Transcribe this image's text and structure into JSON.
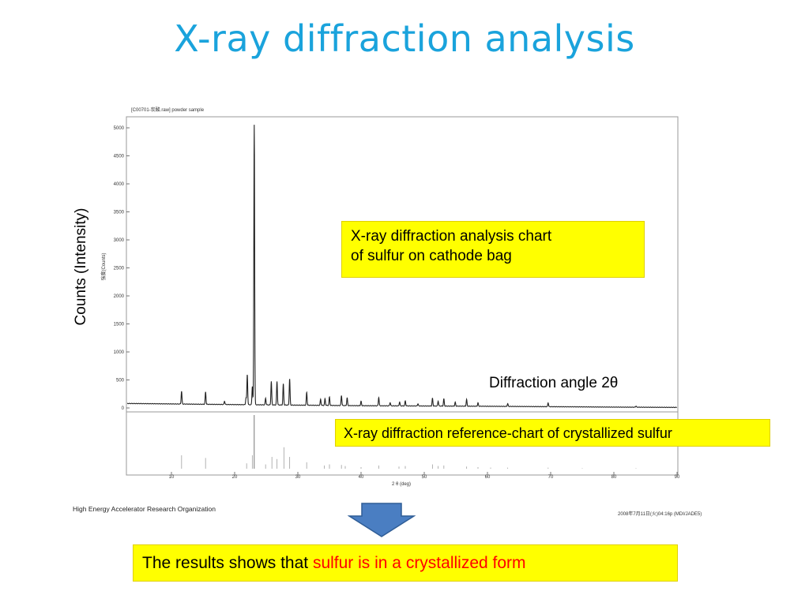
{
  "slide": {
    "title": "X-ray diffraction analysis",
    "y_axis_caption": "Counts (Intensity)",
    "x_axis_caption": "Diffraction angle 2θ",
    "callout_main": [
      "X-ray diffraction analysis chart",
      "of sulfur on cathode bag"
    ],
    "callout_reference": "X-ray diffraction reference-chart of crystallized sulfur",
    "result_prefix": "The results shows that ",
    "result_highlight": "sulfur is in a crystallized form",
    "organization": "High Energy Accelerator Research Organization",
    "timestamp": "2008年7月11日(火)04:16p (MDI/JADE5)",
    "colors": {
      "title": "#1aa3dc",
      "callout": "#ffff00",
      "highlight": "#ff0000",
      "arrow": "#4a7ec2"
    },
    "arrow_icon": "down-arrow-icon"
  },
  "chart_data": {
    "type": "line",
    "header": "[C00701-炭酸.raw] powder sample",
    "ylabel": "強度(Counts)",
    "xlabel": "2 θ (deg)",
    "xlim": [
      3,
      90
    ],
    "ylim": [
      0,
      5000
    ],
    "yticks": [
      0,
      500,
      1000,
      1500,
      2000,
      2500,
      3000,
      3500,
      4000,
      4500,
      5000
    ],
    "xticks": [
      10,
      20,
      30,
      40,
      50,
      60,
      70,
      80,
      90
    ],
    "baseline": [
      [
        3,
        80
      ],
      [
        20,
        60
      ],
      [
        40,
        40
      ],
      [
        60,
        30
      ],
      [
        80,
        15
      ],
      [
        90,
        10
      ]
    ],
    "peaks": [
      [
        11.6,
        230
      ],
      [
        15.4,
        220
      ],
      [
        18.4,
        60
      ],
      [
        21.8,
        120
      ],
      [
        22.0,
        540
      ],
      [
        22.8,
        330
      ],
      [
        23.1,
        5000
      ],
      [
        24.9,
        120
      ],
      [
        25.8,
        420
      ],
      [
        26.7,
        420
      ],
      [
        27.7,
        380
      ],
      [
        28.7,
        470
      ],
      [
        31.4,
        230
      ],
      [
        33.6,
        110
      ],
      [
        34.3,
        120
      ],
      [
        35.0,
        150
      ],
      [
        36.9,
        180
      ],
      [
        37.8,
        140
      ],
      [
        40.0,
        80
      ],
      [
        42.8,
        150
      ],
      [
        44.6,
        60
      ],
      [
        46.1,
        70
      ],
      [
        47.0,
        90
      ],
      [
        49.0,
        40
      ],
      [
        51.3,
        140
      ],
      [
        52.2,
        90
      ],
      [
        53.1,
        130
      ],
      [
        54.9,
        70
      ],
      [
        56.7,
        120
      ],
      [
        58.5,
        60
      ],
      [
        63.2,
        50
      ],
      [
        69.6,
        70
      ],
      [
        83.5,
        20
      ]
    ],
    "reference_sticks": [
      [
        11.6,
        25
      ],
      [
        15.4,
        20
      ],
      [
        21.9,
        10
      ],
      [
        22.8,
        25
      ],
      [
        23.1,
        100
      ],
      [
        24.9,
        8
      ],
      [
        25.9,
        22
      ],
      [
        26.7,
        18
      ],
      [
        27.8,
        40
      ],
      [
        28.7,
        22
      ],
      [
        31.4,
        12
      ],
      [
        34.2,
        6
      ],
      [
        35.0,
        8
      ],
      [
        36.9,
        7
      ],
      [
        37.5,
        5
      ],
      [
        40.0,
        3
      ],
      [
        42.8,
        6
      ],
      [
        46.0,
        4
      ],
      [
        47.0,
        5
      ],
      [
        51.3,
        8
      ],
      [
        52.2,
        5
      ],
      [
        53.1,
        6
      ],
      [
        56.7,
        4
      ],
      [
        58.5,
        3
      ],
      [
        60.5,
        2
      ],
      [
        63.2,
        2
      ],
      [
        69.6,
        2
      ],
      [
        75.0,
        1
      ],
      [
        83.5,
        1
      ]
    ]
  }
}
